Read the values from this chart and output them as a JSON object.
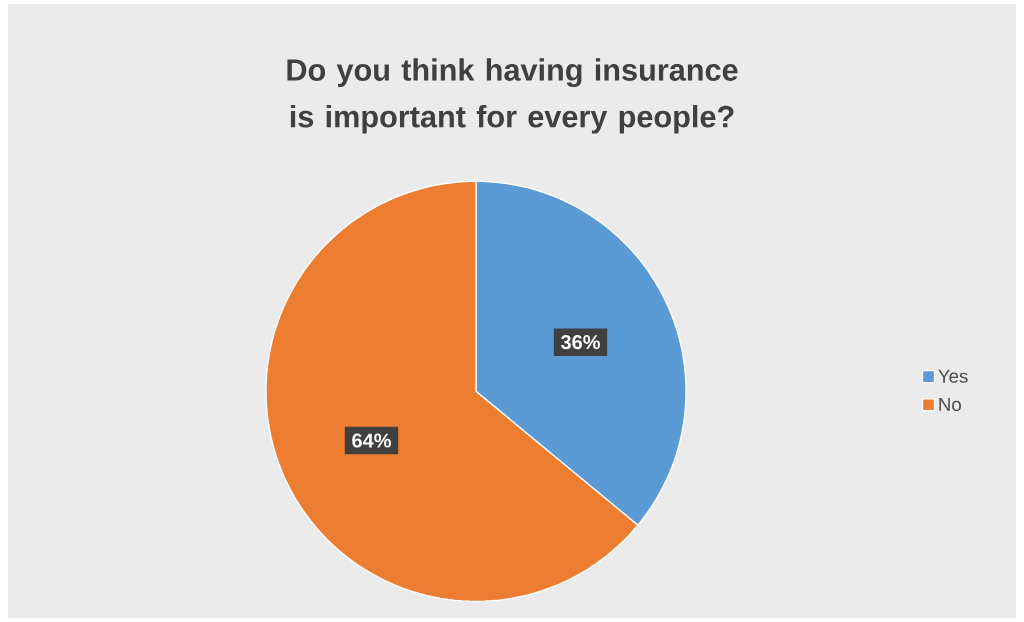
{
  "chart_data": {
    "type": "pie",
    "title": "Do you think having insurance is important for every people?",
    "categories": [
      "Yes",
      "No"
    ],
    "values": [
      36,
      64
    ],
    "colors": [
      "#5b9bd5",
      "#ed7d31"
    ],
    "value_labels": [
      "36%",
      "64%"
    ],
    "legend": "right"
  }
}
